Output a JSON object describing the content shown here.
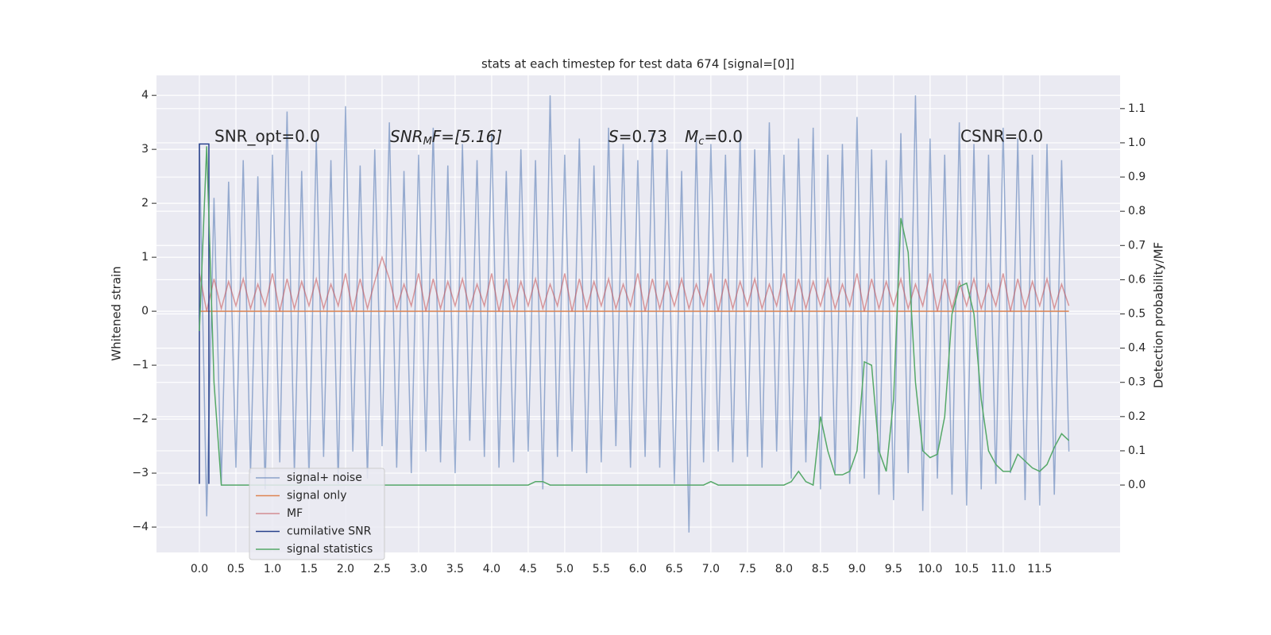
{
  "chart_data": {
    "type": "line",
    "title": "stats at each timestep for test data 674 [signal=[0]]",
    "ylabel": "Whitened strain",
    "y2label": "Detection probability/MF",
    "annotations": [
      {
        "text": "SNR_opt=0.0"
      },
      {
        "base": "SNR",
        "sub": "M",
        "rest": "F=[5.16]"
      },
      {
        "s": "S",
        "s_rest": "=0.73",
        "m": "M",
        "m_sub": "c",
        "m_rest": "=0.0"
      },
      {
        "text": "CSNR=0.0"
      }
    ],
    "grid": true,
    "legend": "lower left",
    "xlim": [
      -0.587,
      12.6
    ],
    "ylim": [
      -4.47,
      4.37
    ],
    "y2lim": [
      -0.197,
      1.197
    ],
    "xticks": [
      {
        "value": 0,
        "label": "0.0"
      },
      {
        "value": 0.5,
        "label": "0.5"
      },
      {
        "value": 1,
        "label": "1.0"
      },
      {
        "value": 1.5,
        "label": "1.5"
      },
      {
        "value": 2,
        "label": "2.0"
      },
      {
        "value": 2.5,
        "label": "2.5"
      },
      {
        "value": 3,
        "label": "3.0"
      },
      {
        "value": 3.5,
        "label": "3.5"
      },
      {
        "value": 4,
        "label": "4.0"
      },
      {
        "value": 4.5,
        "label": "4.5"
      },
      {
        "value": 5,
        "label": "5.0"
      },
      {
        "value": 5.5,
        "label": "5.5"
      },
      {
        "value": 6,
        "label": "6.0"
      },
      {
        "value": 6.5,
        "label": "6.5"
      },
      {
        "value": 7,
        "label": "7.0"
      },
      {
        "value": 7.5,
        "label": "7.5"
      },
      {
        "value": 8,
        "label": "8.0"
      },
      {
        "value": 8.5,
        "label": "8.5"
      },
      {
        "value": 9,
        "label": "9.0"
      },
      {
        "value": 9.5,
        "label": "9.5"
      },
      {
        "value": 10,
        "label": "10.0"
      },
      {
        "value": 10.5,
        "label": "10.5"
      },
      {
        "value": 11,
        "label": "11.0"
      },
      {
        "value": 11.5,
        "label": "11.5"
      }
    ],
    "yticks": [
      {
        "value": -4,
        "label": "−4"
      },
      {
        "value": -3,
        "label": "−3"
      },
      {
        "value": -2,
        "label": "−2"
      },
      {
        "value": -1,
        "label": "−1"
      },
      0,
      1,
      2,
      3,
      4
    ],
    "y2ticks": [
      {
        "value": 0,
        "label": "0.0"
      },
      {
        "value": 0.1,
        "label": "0.1"
      },
      {
        "value": 0.2,
        "label": "0.2"
      },
      {
        "value": 0.3,
        "label": "0.3"
      },
      {
        "value": 0.4,
        "label": "0.4"
      },
      {
        "value": 0.5,
        "label": "0.5"
      },
      {
        "value": 0.6,
        "label": "0.6"
      },
      {
        "value": 0.7,
        "label": "0.7"
      },
      {
        "value": 0.8,
        "label": "0.8"
      },
      {
        "value": 0.9,
        "label": "0.9"
      },
      {
        "value": 1,
        "label": "1.0"
      },
      {
        "value": 1.1,
        "label": "1.1"
      }
    ],
    "x": [
      0,
      0.1,
      0.2,
      0.3,
      0.4,
      0.5,
      0.6,
      0.7,
      0.8,
      0.9,
      1,
      1.1,
      1.2,
      1.3,
      1.4,
      1.5,
      1.6,
      1.7,
      1.8,
      1.9,
      2,
      2.1,
      2.2,
      2.3,
      2.4,
      2.5,
      2.6,
      2.7,
      2.8,
      2.9,
      3,
      3.1,
      3.2,
      3.3,
      3.4,
      3.5,
      3.6,
      3.7,
      3.8,
      3.9,
      4,
      4.1,
      4.2,
      4.3,
      4.4,
      4.5,
      4.6,
      4.7,
      4.8,
      4.9,
      5,
      5.1,
      5.2,
      5.3,
      5.4,
      5.5,
      5.6,
      5.7,
      5.8,
      5.9,
      6,
      6.1,
      6.2,
      6.3,
      6.4,
      6.5,
      6.6,
      6.7,
      6.8,
      6.9,
      7,
      7.1,
      7.2,
      7.3,
      7.4,
      7.5,
      7.6,
      7.7,
      7.8,
      7.9,
      8,
      8.1,
      8.2,
      8.3,
      8.4,
      8.5,
      8.6,
      8.7,
      8.8,
      8.9,
      9,
      9.1,
      9.2,
      9.3,
      9.4,
      9.5,
      9.6,
      9.7,
      9.8,
      9.9,
      10,
      10.1,
      10.2,
      10.3,
      10.4,
      10.5,
      10.6,
      10.7,
      10.8,
      10.9,
      11,
      11.1,
      11.2,
      11.3,
      11.4,
      11.5,
      11.6,
      11.7,
      11.8,
      11.9
    ],
    "series": [
      {
        "name": "signal+ noise",
        "color": "#4c72b0",
        "values": [
          3.1,
          -3.8,
          2.1,
          -3.2,
          2.4,
          -2.9,
          2.8,
          -3.0,
          2.5,
          -3.3,
          2.9,
          -2.8,
          3.7,
          -3.0,
          2.6,
          -3.1,
          3.2,
          -2.7,
          2.8,
          -3.2,
          3.8,
          -2.6,
          2.7,
          -3.1,
          3.0,
          -2.5,
          3.5,
          -2.9,
          2.6,
          -3.0,
          2.9,
          -2.6,
          3.4,
          -2.8,
          2.7,
          -3.0,
          3.1,
          -2.4,
          2.8,
          -2.7,
          3.3,
          -2.9,
          2.6,
          -2.8,
          3.0,
          -2.6,
          2.8,
          -3.3,
          4.0,
          -2.7,
          2.9,
          -2.6,
          3.2,
          -3.0,
          2.7,
          -2.8,
          3.4,
          -2.5,
          3.1,
          -2.9,
          2.8,
          -2.7,
          3.3,
          -2.9,
          3.0,
          -3.2,
          2.6,
          -4.1,
          3.2,
          -2.8,
          3.1,
          -2.6,
          2.9,
          -2.8,
          3.3,
          -2.7,
          3.0,
          -2.9,
          3.5,
          -2.6,
          2.9,
          -3.1,
          3.2,
          -2.8,
          3.4,
          -3.3,
          2.9,
          -3.0,
          3.1,
          -3.2,
          3.6,
          -3.1,
          3.0,
          -3.4,
          2.8,
          -3.5,
          3.3,
          -3.0,
          4.0,
          -3.7,
          3.2,
          -3.1,
          2.9,
          -3.4,
          3.5,
          -3.6,
          3.1,
          -3.3,
          2.9,
          -3.2,
          3.4,
          -3.0,
          3.2,
          -3.5,
          2.9,
          -3.6,
          3.1,
          -3.4,
          2.8,
          -2.6
        ]
      },
      {
        "name": "signal only",
        "color": "#dd8452",
        "x": [
          0,
          11.9
        ],
        "values": [
          0,
          0
        ]
      },
      {
        "name": "MF",
        "color": "#c44e52",
        "values": [
          0.7,
          0.0,
          0.6,
          0.05,
          0.55,
          0.1,
          0.6,
          0.05,
          0.5,
          0.1,
          0.7,
          0.0,
          0.6,
          0.05,
          0.55,
          0.1,
          0.6,
          0.05,
          0.5,
          0.1,
          0.7,
          0.0,
          0.6,
          0.05,
          0.55,
          1.0,
          0.6,
          0.05,
          0.5,
          0.1,
          0.7,
          0.0,
          0.6,
          0.05,
          0.55,
          0.1,
          0.6,
          0.05,
          0.5,
          0.1,
          0.7,
          0.0,
          0.6,
          0.05,
          0.55,
          0.1,
          0.6,
          0.05,
          0.5,
          0.1,
          0.7,
          0.0,
          0.6,
          0.05,
          0.55,
          0.1,
          0.6,
          0.05,
          0.5,
          0.1,
          0.7,
          0.0,
          0.6,
          0.05,
          0.55,
          0.1,
          0.6,
          0.05,
          0.5,
          0.1,
          0.7,
          0.0,
          0.6,
          0.05,
          0.55,
          0.1,
          0.6,
          0.05,
          0.5,
          0.1,
          0.7,
          0.0,
          0.6,
          0.05,
          0.55,
          0.1,
          0.6,
          0.05,
          0.5,
          0.1,
          0.7,
          0.0,
          0.6,
          0.05,
          0.55,
          0.1,
          0.6,
          0.05,
          0.5,
          0.1,
          0.7,
          0.0,
          0.6,
          0.05,
          0.55,
          0.1,
          0.6,
          0.05,
          0.5,
          0.1,
          0.7,
          0.0,
          0.6,
          0.05,
          0.55,
          0.1,
          0.6,
          0.05,
          0.5,
          0.1
        ]
      },
      {
        "name": "cumilative SNR",
        "color": "#27408b",
        "x": [
          0,
          0,
          0.13,
          0.13
        ],
        "values": [
          -3.2,
          3.1,
          3.1,
          -3.2
        ]
      },
      {
        "name": "signal statistics",
        "color": "#55a868",
        "axis": "y2",
        "values": [
          0.45,
          0.99,
          0.3,
          0,
          0,
          0,
          0,
          0,
          0,
          0,
          0,
          0,
          0,
          0,
          0,
          0,
          0,
          0,
          0,
          0,
          0,
          0,
          0,
          0,
          0,
          0,
          0,
          0,
          0,
          0,
          0,
          0,
          0,
          0,
          0,
          0,
          0,
          0,
          0,
          0,
          0,
          0,
          0,
          0,
          0,
          0,
          0.01,
          0.01,
          0,
          0,
          0,
          0,
          0,
          0,
          0,
          0,
          0,
          0,
          0,
          0,
          0,
          0,
          0,
          0,
          0,
          0,
          0,
          0,
          0,
          0,
          0.01,
          0,
          0,
          0,
          0,
          0,
          0,
          0,
          0,
          0,
          0,
          0.01,
          0.04,
          0.01,
          0,
          0.2,
          0.1,
          0.03,
          0.03,
          0.04,
          0.1,
          0.36,
          0.35,
          0.1,
          0.04,
          0.25,
          0.78,
          0.68,
          0.3,
          0.1,
          0.08,
          0.09,
          0.2,
          0.5,
          0.58,
          0.59,
          0.5,
          0.25,
          0.1,
          0.06,
          0.04,
          0.04,
          0.09,
          0.07,
          0.05,
          0.04,
          0.06,
          0.11,
          0.15,
          0.13
        ]
      }
    ]
  }
}
